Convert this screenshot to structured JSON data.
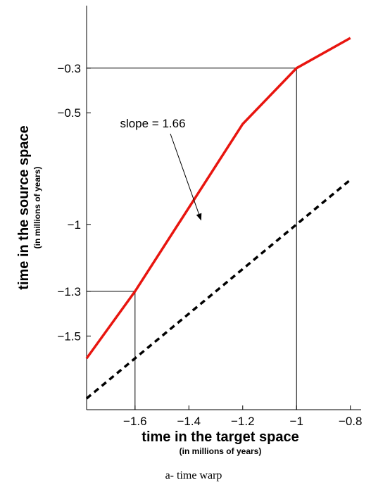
{
  "chart_data": {
    "type": "line",
    "xlabel": "time in the target space",
    "xlabel_sub": "(in millions of years)",
    "ylabel": "time in the source space",
    "ylabel_sub": "(in millions of years)",
    "caption": "a- time warp",
    "xlim": [
      -1.78,
      -0.76
    ],
    "ylim": [
      -1.83,
      -0.02
    ],
    "x_ticks": [
      -1.6,
      -1.4,
      -1.2,
      -1,
      -0.8
    ],
    "x_tick_labels": [
      "−1.6",
      "−1.4",
      "−1.2",
      "−1",
      "−0.8"
    ],
    "y_ticks": [
      -0.3,
      -0.5,
      -1,
      -1.3,
      -1.5
    ],
    "y_tick_labels": [
      "−0.3",
      "−0.5",
      "−1",
      "−1.3",
      "−1.5"
    ],
    "grid": false,
    "series": [
      {
        "style": "solid",
        "color": "#e8150f",
        "x": [
          -1.78,
          -1.6,
          -1.2,
          -1.0,
          -0.8
        ],
        "y": [
          -1.6,
          -1.3,
          -0.55,
          -0.3,
          -0.165
        ]
      },
      {
        "style": "dashed",
        "color": "#000000",
        "x": [
          -1.78,
          -0.8
        ],
        "y": [
          -1.78,
          -0.8
        ]
      }
    ],
    "reference_lines": [
      {
        "x": -1.6,
        "y": -1.3
      },
      {
        "x": -1.0,
        "y": -0.3
      }
    ],
    "annotations": [
      {
        "text": "slope = 1.66",
        "arrow_to": {
          "x": -1.355,
          "y": -0.98
        }
      }
    ]
  }
}
